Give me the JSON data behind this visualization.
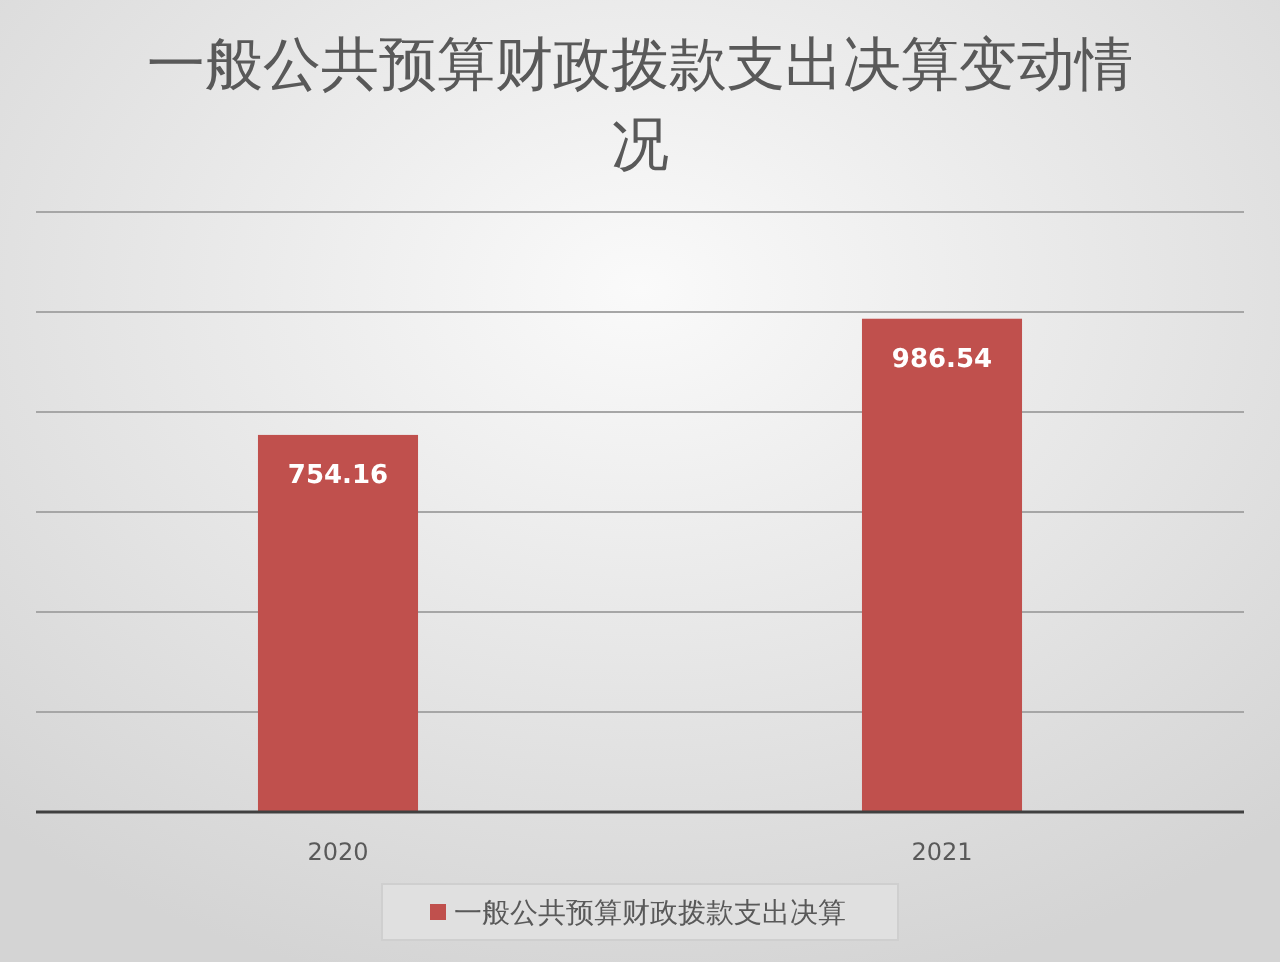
{
  "chart_data": {
    "type": "bar",
    "title": "一般公共预算财政拨款支出决算变动情况",
    "categories": [
      "2020",
      "2021"
    ],
    "series": [
      {
        "name": "一般公共预算财政拨款支出决算",
        "color": "#c0504d",
        "values": [
          754.16,
          986.54
        ]
      }
    ],
    "ylim": [
      0,
      1200
    ],
    "yticks": [
      {
        "value": 0,
        "label": null
      },
      {
        "value": 200,
        "label": null
      },
      {
        "value": 400,
        "label": null
      },
      {
        "value": 600,
        "label": null
      },
      {
        "value": 800,
        "label": null
      },
      {
        "value": 1000,
        "label": null
      },
      {
        "value": 1200,
        "label": null
      }
    ],
    "tick_labels": "x",
    "grid": "y",
    "data_labels": true,
    "legend": "bottom"
  }
}
